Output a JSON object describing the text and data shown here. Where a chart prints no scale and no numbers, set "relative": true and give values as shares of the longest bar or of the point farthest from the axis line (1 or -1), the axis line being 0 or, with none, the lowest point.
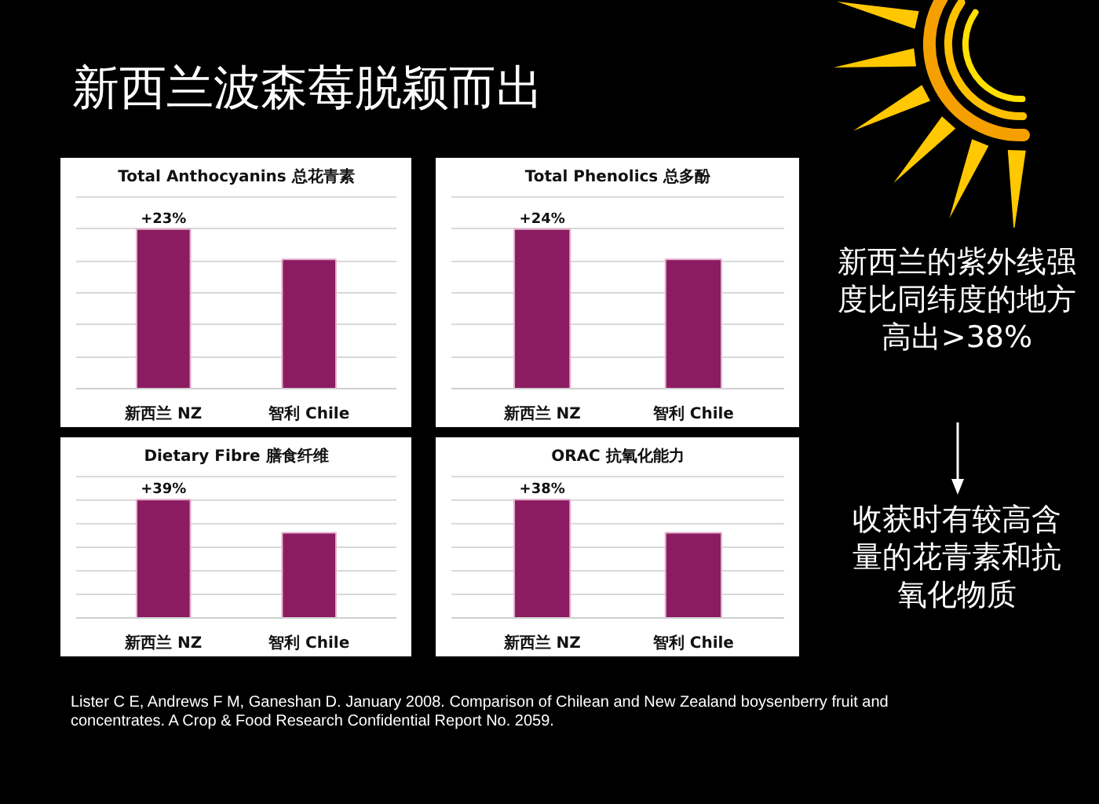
{
  "chart_data": [
    {
      "type": "other",
      "title": "新西兰波森莓脱颖而出",
      "annotations": [
        "新西兰的紫外线强度比同纬度的地方高出>38%",
        "收获时有较高含量的花青素和抗氧化物质",
        "Lister C E, Andrews F M, Ganeshan D. January 2008. Comparison of Chilean and New Zealand boysenberry fruit and concentrates. A Crop & Food Research Confidential Report No. 2059."
      ]
    },
    {
      "type": "bar",
      "title": "Total Anthocyanins 总花青素",
      "categories": [
        "新西兰 NZ",
        "智利 Chile"
      ],
      "values": [
        1,
        0.81
      ],
      "annotations": [
        {
          "text": "+23%",
          "x": "新西兰 NZ",
          "y": 1
        }
      ],
      "color": "#8b1c62",
      "relative": true,
      "grid": "y"
    },
    {
      "type": "bar",
      "title": "Total Phenolics 总多酚",
      "categories": [
        "新西兰 NZ",
        "智利 Chile"
      ],
      "values": [
        1,
        0.81
      ],
      "annotations": [
        {
          "text": "+24%",
          "x": "新西兰 NZ",
          "y": 1
        }
      ],
      "color": "#8b1c62",
      "relative": true,
      "grid": "y"
    },
    {
      "type": "bar",
      "title": "Dietary Fibre 膳食纤维",
      "categories": [
        "新西兰 NZ",
        "智利 Chile"
      ],
      "values": [
        1,
        0.72
      ],
      "annotations": [
        {
          "text": "+39%",
          "x": "新西兰 NZ",
          "y": 1
        }
      ],
      "color": "#8b1c62",
      "relative": true,
      "grid": "y"
    },
    {
      "type": "bar",
      "title": "ORAC 抗氧化能力",
      "categories": [
        "新西兰 NZ",
        "智利 Chile"
      ],
      "values": [
        1,
        0.72
      ],
      "annotations": [
        {
          "text": "+38%",
          "x": "新西兰 NZ",
          "y": 1
        }
      ],
      "color": "#8b1c62",
      "relative": true,
      "grid": "y"
    }
  ]
}
